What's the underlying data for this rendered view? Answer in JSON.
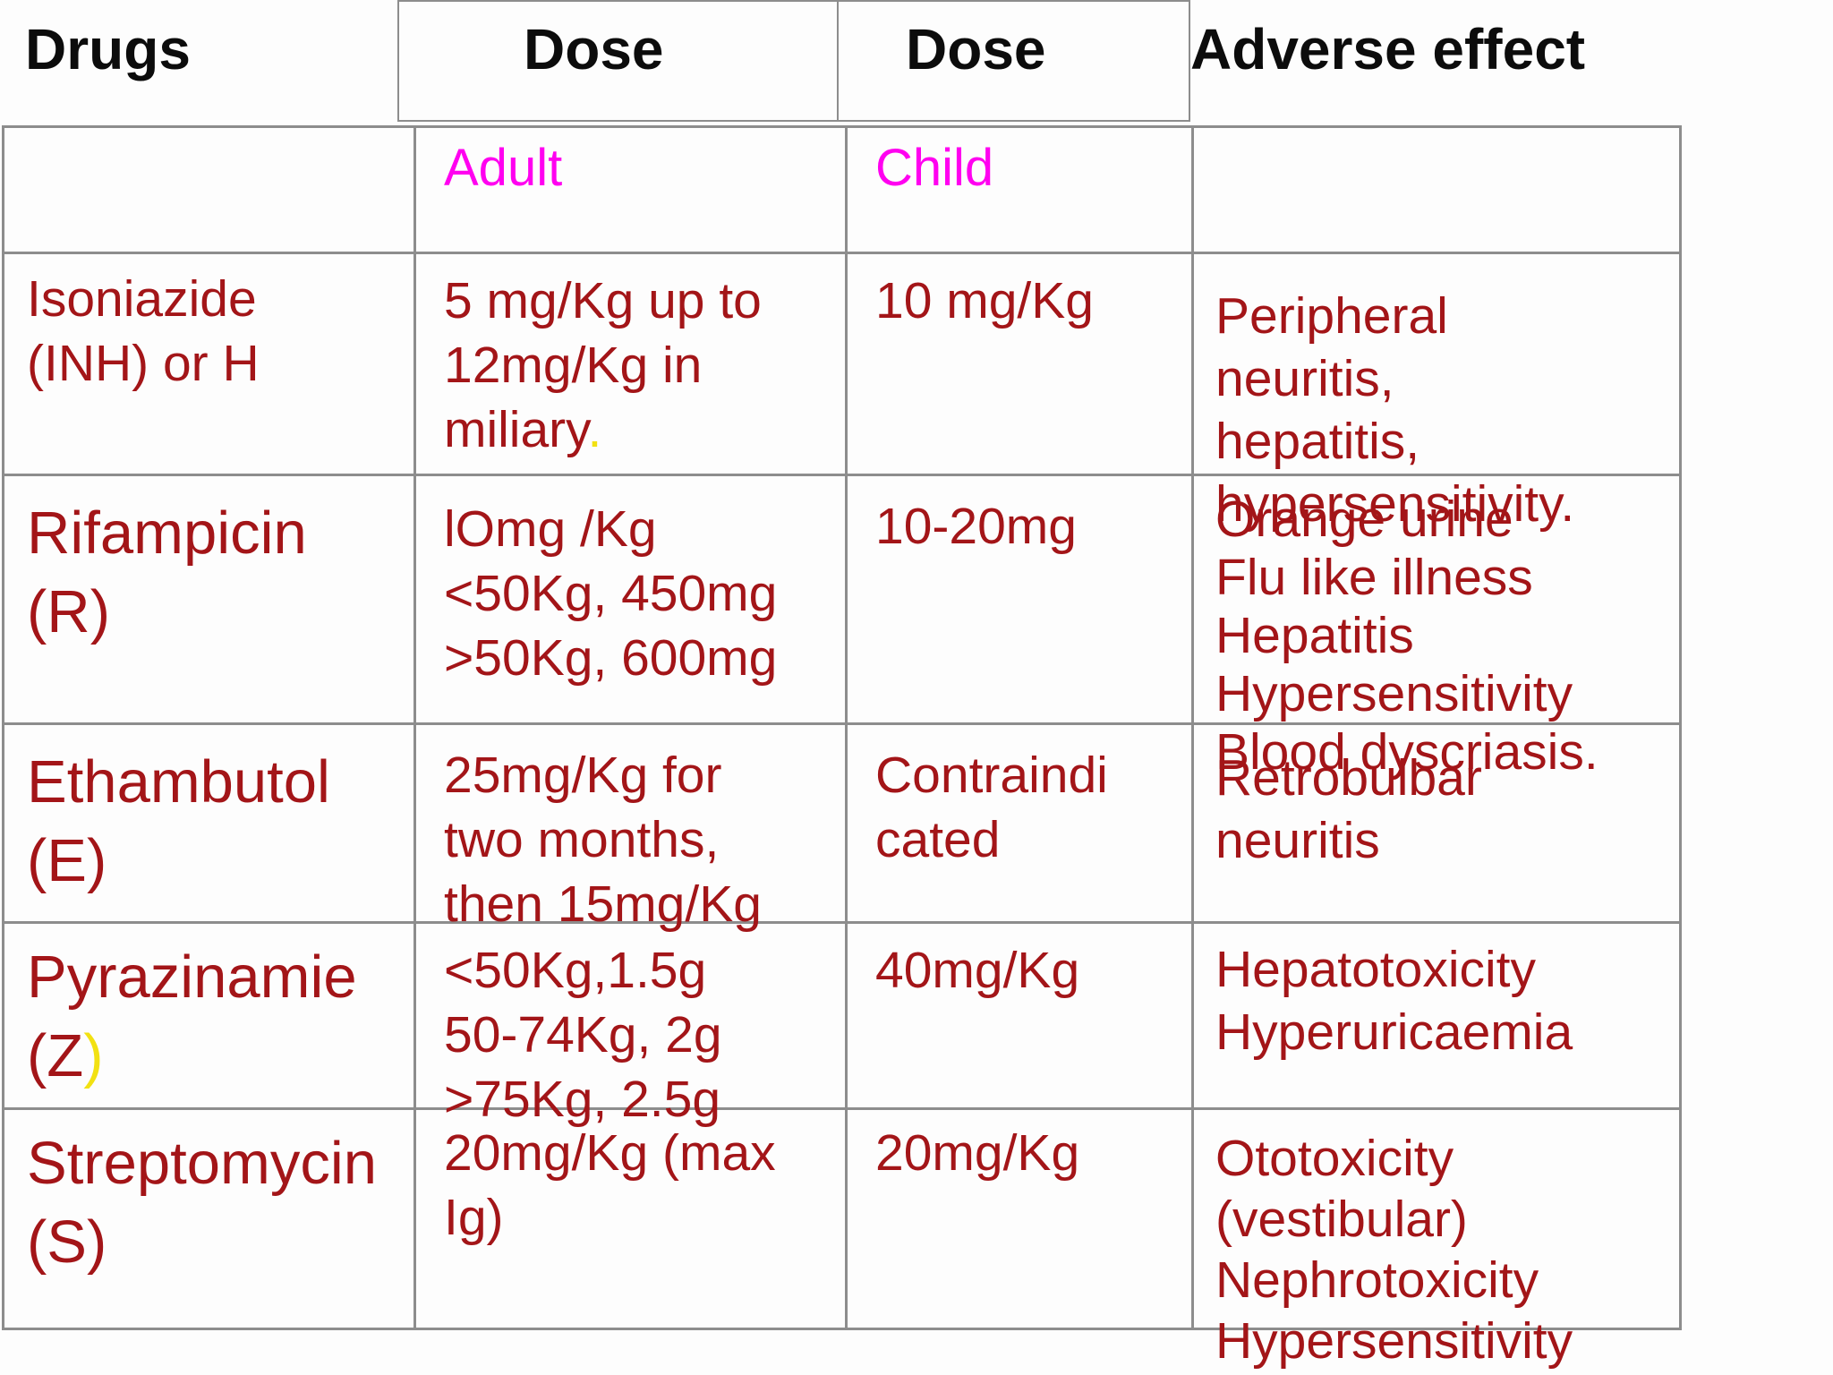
{
  "colors": {
    "body_text": "#a31518",
    "header_text": "#0c0c0c",
    "subheader_text": "#ff00f0",
    "highlight": "#f2e112",
    "border": "#8d8d8d",
    "background": "#fdfdfd"
  },
  "header": {
    "drugs": "Drugs",
    "dose_adult": "Dose",
    "dose_child": "Dose",
    "adverse": "Adverse effect"
  },
  "subheader": {
    "adult": "Adult",
    "child": "Child"
  },
  "rows": [
    {
      "drug": [
        [
          "Isoniazide"
        ],
        [
          "(INH) or H"
        ]
      ],
      "adult": [
        [
          "5 mg/Kg up to"
        ],
        [
          "12mg/Kg in"
        ],
        [
          "miliary",
          {
            "t": ".",
            "hl": true
          }
        ]
      ],
      "child": [
        [
          "10 mg/Kg"
        ]
      ],
      "adverse": [
        [
          "Peripheral"
        ],
        [
          "neuritis,"
        ],
        [
          "hepatitis,"
        ],
        [
          "hypersensitivity."
        ]
      ]
    },
    {
      "drug": [
        [
          "Rifampicin"
        ],
        [
          "(R)"
        ]
      ],
      "adult": [
        [
          "lOmg /Kg"
        ],
        [
          "<50Kg, 450mg"
        ],
        [
          ">50Kg, 600mg"
        ]
      ],
      "child": [
        [
          "10-20mg"
        ]
      ],
      "adverse": [
        [
          "Orange urine"
        ],
        [
          "Flu like illness"
        ],
        [
          "Hepatitis"
        ],
        [
          "Hypersensitivity"
        ],
        [
          "Blood dyscriasis."
        ]
      ]
    },
    {
      "drug": [
        [
          "Ethambutol"
        ],
        [
          "(E)"
        ]
      ],
      "adult": [
        [
          "25mg/Kg for"
        ],
        [
          "two months,"
        ],
        [
          "then 15mg/Kg"
        ]
      ],
      "child": [
        [
          "Contraindi"
        ],
        [
          "cated"
        ]
      ],
      "adverse": [
        [
          "Retrobulbar"
        ],
        [
          "neuritis"
        ]
      ]
    },
    {
      "drug": [
        [
          "Pyrazinamie"
        ],
        [
          "(Z",
          {
            "t": ")",
            "hl": true
          }
        ]
      ],
      "adult": [
        [
          "<50Kg,1.5g"
        ],
        [
          "50-74Kg, 2g"
        ],
        [
          ">75Kg, 2.5g"
        ]
      ],
      "child": [
        [
          "40mg/Kg"
        ]
      ],
      "adverse": [
        [
          "Hepatotoxicity"
        ],
        [
          "Hyperuricaemia"
        ]
      ]
    },
    {
      "drug": [
        [
          "Streptomycin"
        ],
        [
          "(S)"
        ]
      ],
      "adult": [
        [
          "20mg/Kg (max"
        ],
        [
          "Ig)"
        ]
      ],
      "child": [
        [
          "20mg/Kg"
        ]
      ],
      "adverse": [
        [
          "Ototoxicity"
        ],
        [
          "(vestibular)"
        ],
        [
          "Nephrotoxicity"
        ],
        [
          "Hypersensitivity"
        ]
      ]
    }
  ]
}
